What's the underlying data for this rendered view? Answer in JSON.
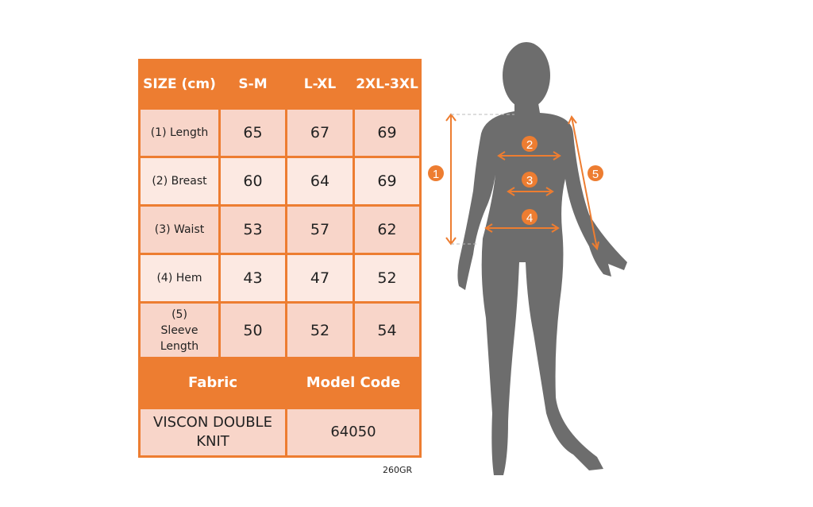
{
  "table": {
    "header": [
      "SIZE (cm)",
      "S-M",
      "L-XL",
      "2XL-3XL"
    ],
    "rows": [
      {
        "label": "(1) Length",
        "values": [
          "65",
          "67",
          "69"
        ]
      },
      {
        "label": "(2) Breast",
        "values": [
          "60",
          "64",
          "69"
        ]
      },
      {
        "label": "(3) Waist",
        "values": [
          "53",
          "57",
          "62"
        ]
      },
      {
        "label": "(4) Hem",
        "values": [
          "43",
          "47",
          "52"
        ]
      },
      {
        "label": "(5) Sleeve Length",
        "values": [
          "50",
          "52",
          "54"
        ]
      }
    ],
    "fabric_label": "Fabric",
    "model_code_label": "Model Code",
    "fabric_value": "VISCON DOUBLE KNIT",
    "model_code_value": "64050"
  },
  "note": "260GR",
  "figure": {
    "markers": [
      "1",
      "2",
      "3",
      "4",
      "5"
    ]
  },
  "colors": {
    "accent": "#ed7d31",
    "row_dark": "#f8d5c9",
    "row_light": "#fce9e2",
    "silhouette": "#6d6d6d"
  }
}
